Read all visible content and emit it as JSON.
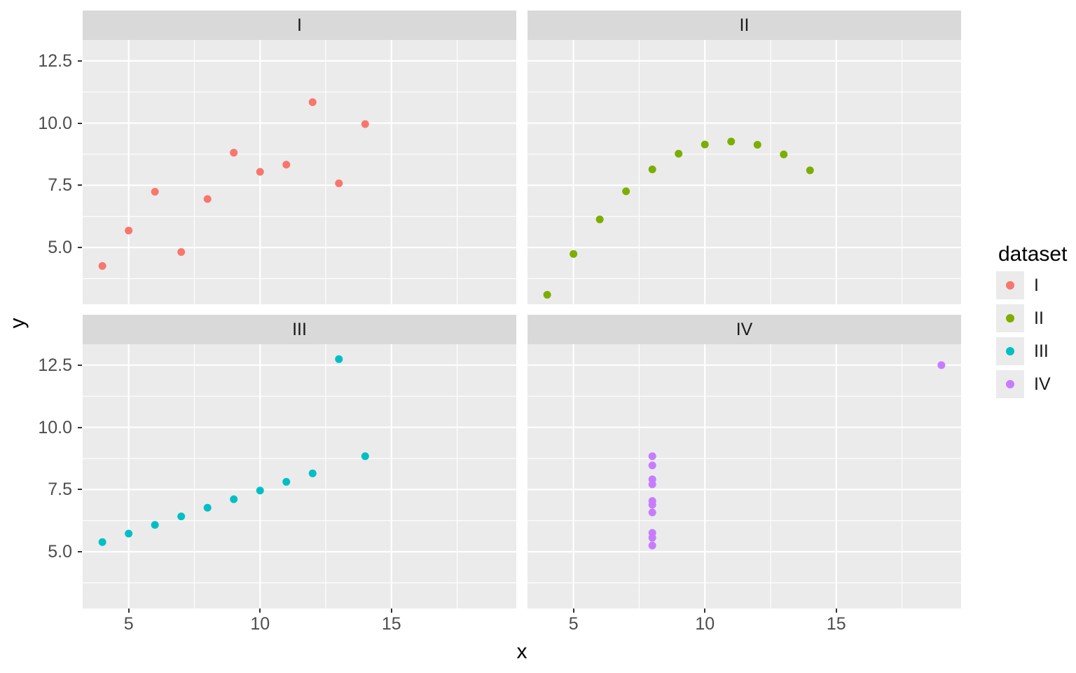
{
  "figure": {
    "x_axis_title": "x",
    "y_axis_title": "y"
  },
  "legend": {
    "title": "dataset"
  },
  "colors": {
    "panel_background": "#EBEBEB",
    "strip_background": "#D9D9D9",
    "gridline": "#FFFFFF",
    "tick_text": "#4D4D4D",
    "strip_text": "#1A1A1A",
    "axis_tick_mark": "#333333",
    "series_I": "#F8766D",
    "series_II": "#7CAE00",
    "series_III": "#00BFC4",
    "series_IV": "#C77CFF"
  },
  "chart_data": {
    "type": "scatter",
    "title": "",
    "xlabel": "x",
    "ylabel": "y",
    "faceted_by": "dataset",
    "legend_position": "right",
    "grid": true,
    "xlim": [
      3.25,
      19.75
    ],
    "ylim": [
      2.72,
      13.34
    ],
    "x_ticks": [
      {
        "value": 5,
        "label": "5"
      },
      {
        "value": 10,
        "label": "10"
      },
      {
        "value": 15,
        "label": "15"
      }
    ],
    "y_ticks": [
      {
        "value": 12.5,
        "label": "12.5"
      },
      {
        "value": 10,
        "label": "10.0"
      },
      {
        "value": 7.5,
        "label": "7.5"
      },
      {
        "value": 5,
        "label": "5.0"
      }
    ],
    "x_minor_ticks": [
      7.5,
      12.5,
      17.5
    ],
    "y_minor_ticks": [
      3.75,
      6.25,
      8.75,
      11.25
    ],
    "facets": [
      {
        "label": "I",
        "color": "#F8766D",
        "points": [
          [
            10,
            8.04
          ],
          [
            8,
            6.95
          ],
          [
            13,
            7.58
          ],
          [
            9,
            8.81
          ],
          [
            11,
            8.33
          ],
          [
            14,
            9.96
          ],
          [
            6,
            7.24
          ],
          [
            4,
            4.26
          ],
          [
            12,
            10.84
          ],
          [
            7,
            4.82
          ],
          [
            5,
            5.68
          ]
        ]
      },
      {
        "label": "II",
        "color": "#7CAE00",
        "points": [
          [
            10,
            9.14
          ],
          [
            8,
            8.14
          ],
          [
            13,
            8.74
          ],
          [
            9,
            8.77
          ],
          [
            11,
            9.26
          ],
          [
            14,
            8.1
          ],
          [
            6,
            6.13
          ],
          [
            4,
            3.1
          ],
          [
            12,
            9.13
          ],
          [
            7,
            7.26
          ],
          [
            5,
            4.74
          ]
        ]
      },
      {
        "label": "III",
        "color": "#00BFC4",
        "points": [
          [
            10,
            7.46
          ],
          [
            8,
            6.77
          ],
          [
            13,
            12.74
          ],
          [
            9,
            7.11
          ],
          [
            11,
            7.81
          ],
          [
            14,
            8.84
          ],
          [
            6,
            6.08
          ],
          [
            4,
            5.39
          ],
          [
            12,
            8.15
          ],
          [
            7,
            6.42
          ],
          [
            5,
            5.73
          ]
        ]
      },
      {
        "label": "IV",
        "color": "#C77CFF",
        "points": [
          [
            8,
            6.58
          ],
          [
            8,
            5.76
          ],
          [
            8,
            7.71
          ],
          [
            8,
            8.84
          ],
          [
            8,
            8.47
          ],
          [
            8,
            7.04
          ],
          [
            8,
            5.25
          ],
          [
            19,
            12.5
          ],
          [
            8,
            5.56
          ],
          [
            8,
            7.91
          ],
          [
            8,
            6.89
          ]
        ]
      }
    ]
  }
}
